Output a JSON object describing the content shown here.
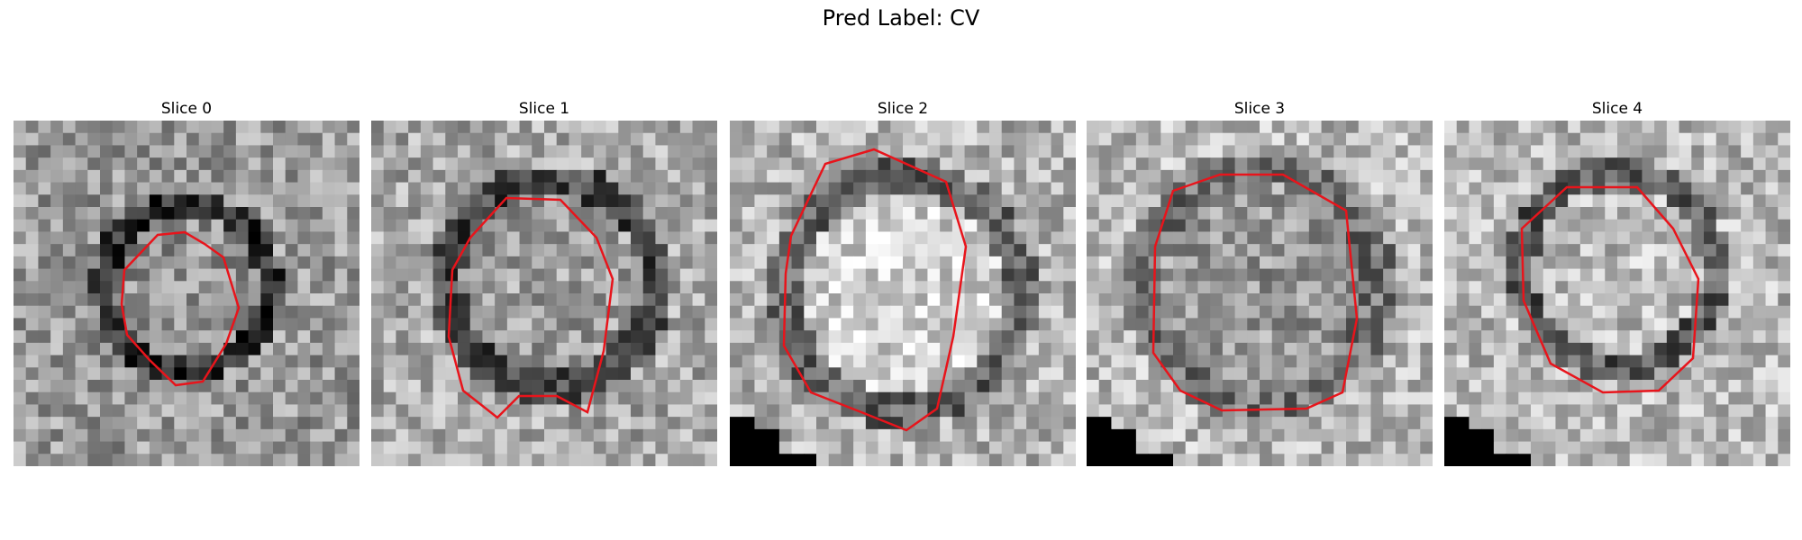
{
  "figure": {
    "title": "Pred Label: CV"
  },
  "colors": {
    "contour": "#e8141b"
  },
  "slices": [
    {
      "title": "Slice 0"
    },
    {
      "title": "Slice 1"
    },
    {
      "title": "Slice 2"
    },
    {
      "title": "Slice 3"
    },
    {
      "title": "Slice 4"
    }
  ]
}
